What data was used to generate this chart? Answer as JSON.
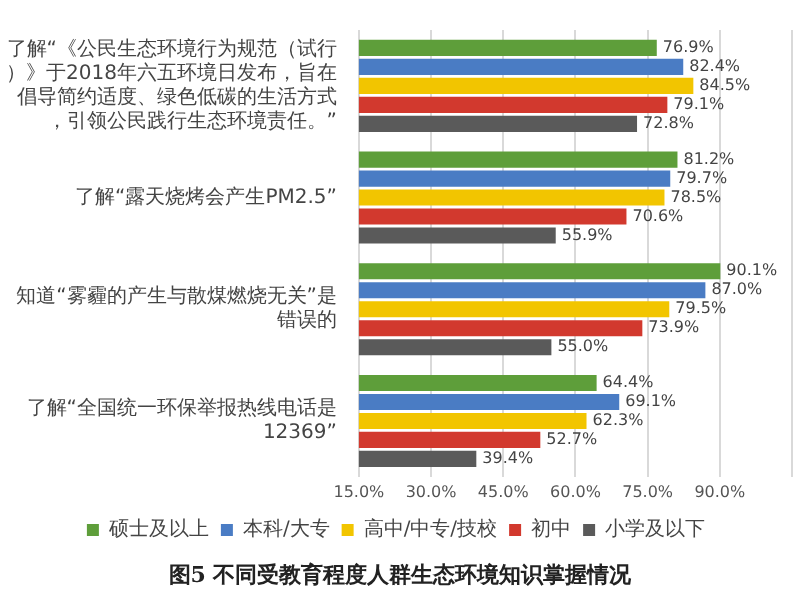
{
  "chart_data": {
    "type": "bar",
    "orientation": "horizontal",
    "title": "图5 不同受教育程度人群生态环境知识掌握情况",
    "categories": [
      "了解“《公民生态环境行为规范（试行）》于2018年六五环境日发布，旨在倡导简约适度、绿色低碳的生活方式，引领公民践行生态环境责任。”",
      "了解“露天烧烤会产生PM2.5”",
      "知道“雾霾的产生与散煤燃烧无关”是错误的",
      "了解“全国统一环保举报热线电话是12369”"
    ],
    "series": [
      {
        "name": "硕士及以上",
        "color": "#5e9e3a",
        "values": [
          76.9,
          81.2,
          90.1,
          64.4
        ],
        "value_labels": [
          "76.9%",
          "81.2%",
          "90.1%",
          "64.4%"
        ]
      },
      {
        "name": "本科/大专",
        "color": "#4a7cc4",
        "values": [
          82.4,
          79.7,
          87.0,
          69.1
        ],
        "value_labels": [
          "82.4%",
          "79.7%",
          "87.0%",
          "69.1%"
        ]
      },
      {
        "name": "高中/中专/技校",
        "color": "#f2c500",
        "values": [
          84.5,
          78.5,
          79.5,
          62.3
        ],
        "value_labels": [
          "84.5%",
          "78.5%",
          "79.5%",
          "62.3%"
        ]
      },
      {
        "name": "初中",
        "color": "#d2392e",
        "values": [
          79.1,
          70.6,
          73.9,
          52.7
        ],
        "value_labels": [
          "79.1%",
          "70.6%",
          "73.9%",
          "52.7%"
        ]
      },
      {
        "name": "小学及以下",
        "color": "#5a5a5a",
        "values": [
          72.8,
          55.9,
          55.0,
          39.4
        ],
        "value_labels": [
          "72.8%",
          "55.9%",
          "55.0%",
          "39.4%"
        ]
      }
    ],
    "xlim": [
      15,
      105
    ],
    "xticks": [
      {
        "value": 15,
        "label": "15.0%"
      },
      {
        "value": 30,
        "label": "30.0%"
      },
      {
        "value": 45,
        "label": "45.0%"
      },
      {
        "value": 60,
        "label": "60.0%"
      },
      {
        "value": 75,
        "label": "75.0%"
      },
      {
        "value": 90,
        "label": "90.0%"
      },
      {
        "value": 105,
        "label": null
      }
    ],
    "grid": "x",
    "legend": "bottom"
  }
}
